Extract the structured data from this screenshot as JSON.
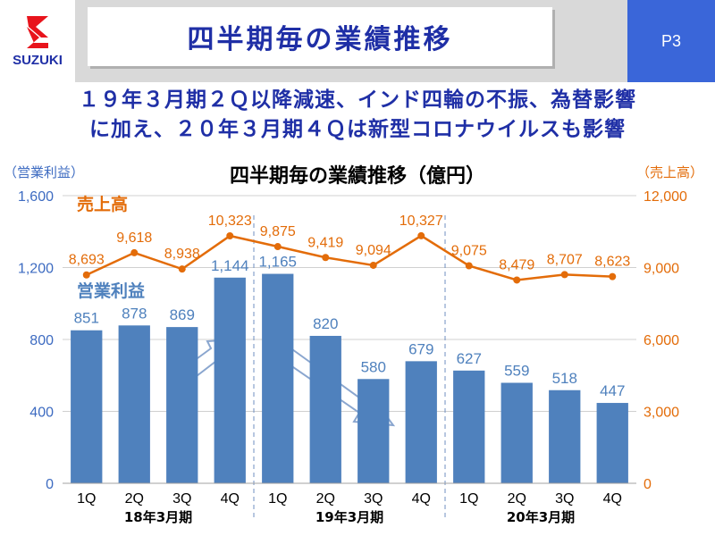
{
  "logo": {
    "text": "SUZUKI"
  },
  "header": {
    "title": "四半期毎の業績推移",
    "page": "P3"
  },
  "headline": {
    "line1": "１９年３月期２Ｑ以降減速、インド四輪の不振、為替影響",
    "line2": "に加え、２０年３月期４Ｑは新型コロナウイルスも影響"
  },
  "chart_data": {
    "type": "bar+line",
    "title": "四半期毎の業績推移（億円）",
    "left_axis_label": "（営業利益）",
    "right_axis_label": "（売上高）",
    "categories": [
      "1Q",
      "2Q",
      "3Q",
      "4Q",
      "1Q",
      "2Q",
      "3Q",
      "4Q",
      "1Q",
      "2Q",
      "3Q",
      "4Q"
    ],
    "groups": [
      "18年3月期",
      "19年3月期",
      "20年3月期"
    ],
    "left_ylim": [
      0,
      1600
    ],
    "left_ticks": [
      "0",
      "400",
      "800",
      "1,200",
      "1,600"
    ],
    "right_ylim": [
      0,
      12000
    ],
    "right_ticks": [
      "0",
      "3,000",
      "6,000",
      "9,000",
      "12,000"
    ],
    "series": [
      {
        "name": "営業利益",
        "axis": "left",
        "type": "bar",
        "color": "#4f81bd",
        "values": [
          851,
          878,
          869,
          1144,
          1165,
          820,
          580,
          679,
          627,
          559,
          518,
          447
        ],
        "labels": [
          "851",
          "878",
          "869",
          "1,144",
          "1,165",
          "820",
          "580",
          "679",
          "627",
          "559",
          "518",
          "447"
        ]
      },
      {
        "name": "売上高",
        "axis": "right",
        "type": "line",
        "color": "#e36c09",
        "values": [
          8693,
          9618,
          8938,
          10323,
          9875,
          9419,
          9094,
          10327,
          9075,
          8479,
          8707,
          8623
        ],
        "labels": [
          "8,693",
          "9,618",
          "8,938",
          "10,323",
          "9,875",
          "9,419",
          "9,094",
          "10,327",
          "9,075",
          "8,479",
          "8,707",
          "8,623"
        ]
      }
    ],
    "colors": {
      "bar": "#4f81bd",
      "line": "#e36c09",
      "bar_label": "#4f81bd",
      "line_label": "#e36c09",
      "arrow_fill": "#ffffff",
      "arrow_stroke": "#8aa6cf"
    }
  }
}
